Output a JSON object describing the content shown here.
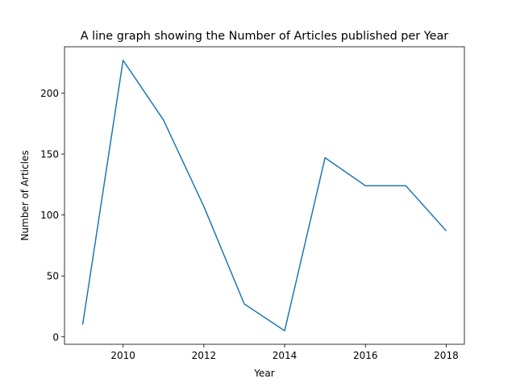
{
  "chart_data": {
    "type": "line",
    "title": "A line graph showing the Number of Articles published per Year",
    "xlabel": "Year",
    "ylabel": "Number of Articles",
    "xlim": [
      2008.55,
      2018.45
    ],
    "ylim": [
      -6.1,
      238.1
    ],
    "xticks": [
      2010,
      2012,
      2014,
      2016,
      2018
    ],
    "yticks": [
      0,
      50,
      100,
      150,
      200
    ],
    "grid": false,
    "color": "#1f77b4",
    "x": [
      2009,
      2010,
      2011,
      2012,
      2013,
      2014,
      2015,
      2016,
      2017,
      2018
    ],
    "y": [
      10,
      227,
      178,
      107,
      27,
      5,
      147,
      124,
      124,
      87
    ]
  }
}
